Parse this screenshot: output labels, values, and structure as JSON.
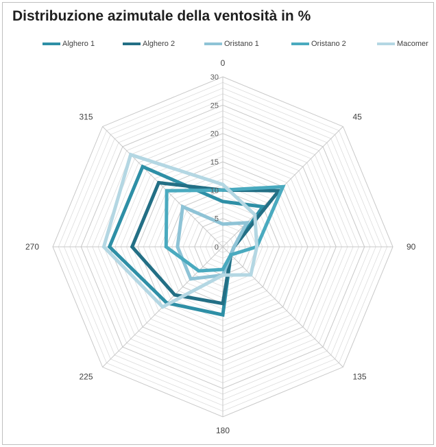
{
  "chart_data": {
    "type": "radar",
    "title": "Distribuzione azimutale della ventosità  in %",
    "categories": [
      "0",
      "45",
      "90",
      "135",
      "180",
      "225",
      "270",
      "315"
    ],
    "rlim": [
      0,
      30
    ],
    "rticks": [
      "0",
      "5",
      "10",
      "15",
      "20",
      "25",
      "30"
    ],
    "grid": true,
    "legend_position": "top",
    "series": [
      {
        "name": "Alghero 1",
        "color": "#2e8fa6",
        "values": [
          8,
          10,
          2,
          2,
          12,
          14,
          20,
          20
        ]
      },
      {
        "name": "Alghero 2",
        "color": "#236f85",
        "values": [
          10,
          14,
          2,
          2,
          10,
          12,
          16,
          16
        ]
      },
      {
        "name": "Oristano 1",
        "color": "#8ec3d6",
        "values": [
          4,
          6,
          2,
          2,
          5,
          8,
          8,
          10
        ]
      },
      {
        "name": "Oristano 2",
        "color": "#4aaabf",
        "values": [
          10,
          15,
          6,
          2,
          4,
          6,
          10,
          14
        ]
      },
      {
        "name": "Macomer",
        "color": "#b4d7e3",
        "values": [
          11,
          8,
          6,
          7,
          5,
          15,
          21,
          23
        ]
      }
    ]
  }
}
